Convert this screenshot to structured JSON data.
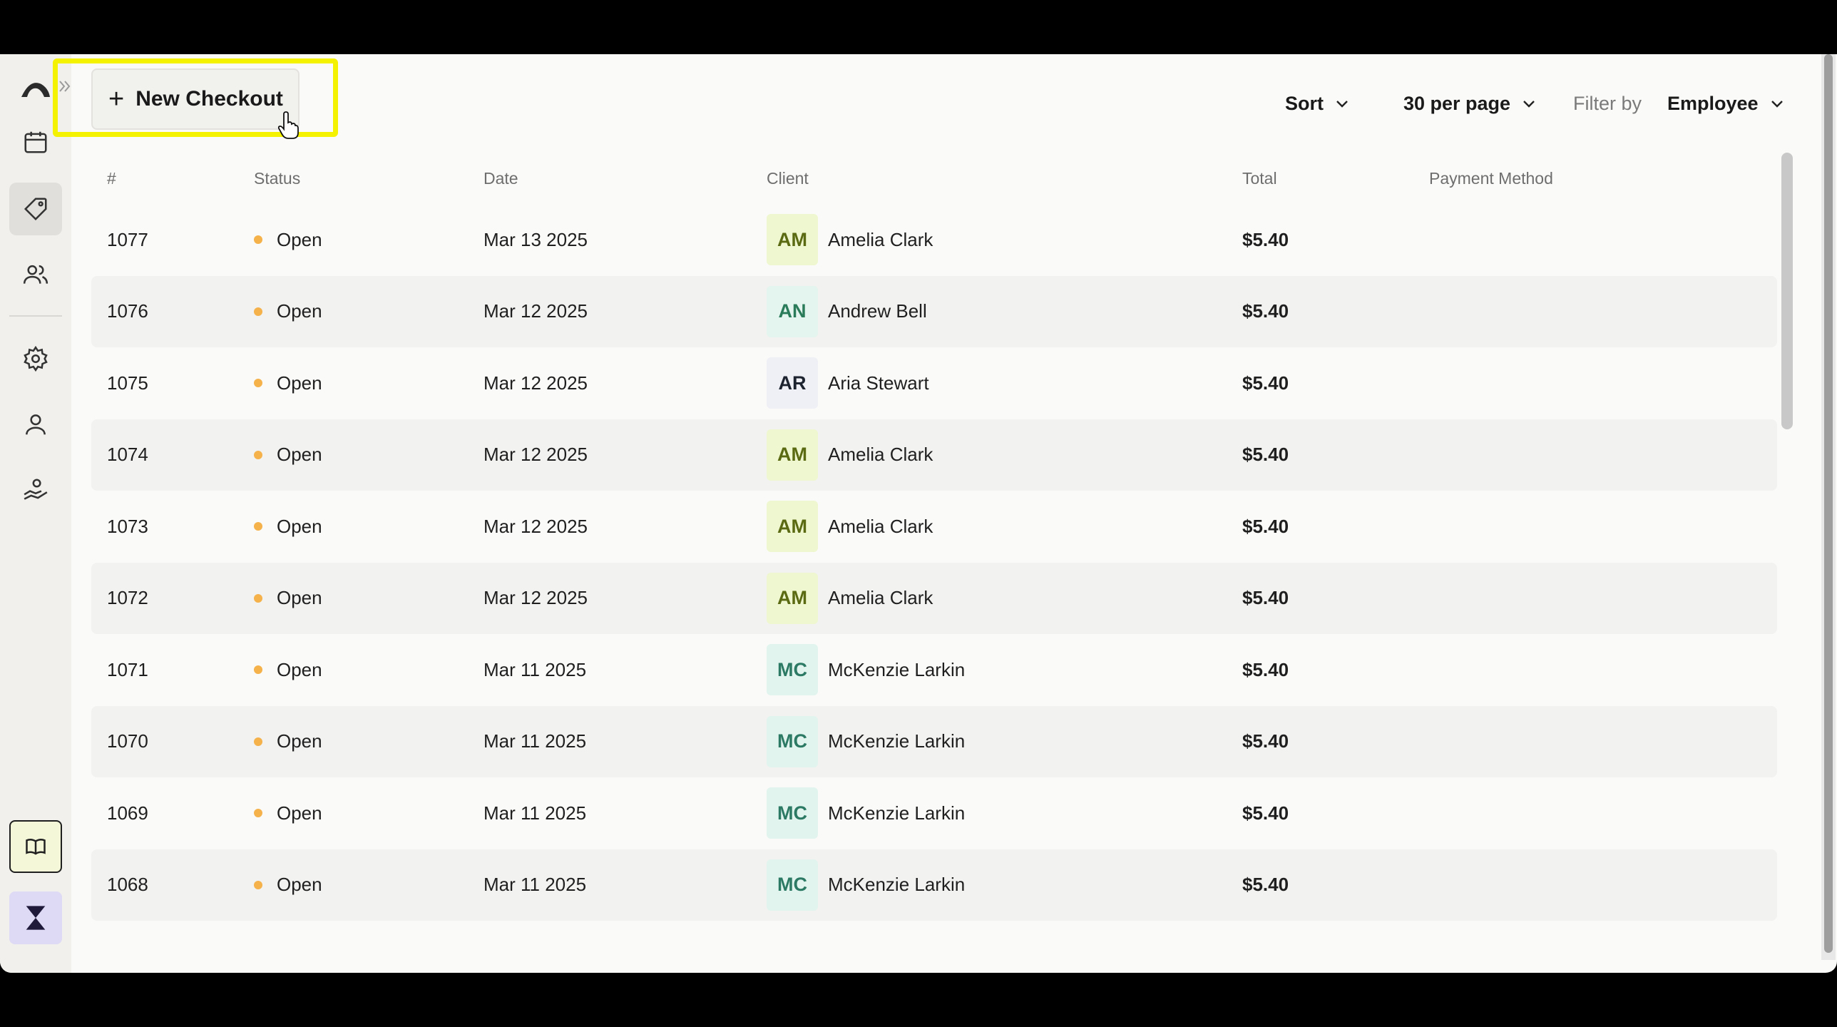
{
  "toolbar": {
    "new_checkout_label": "New Checkout",
    "sort_label": "Sort",
    "per_page_label": "30 per page",
    "filter_by_label": "Filter by",
    "filter_value": "Employee"
  },
  "sidebar": {
    "items": [
      "logo-icon",
      "calendar-icon",
      "tag-icon",
      "users-icon",
      "settings-icon",
      "user-icon",
      "hand-heart-icon",
      "book-icon",
      "hourglass-icon"
    ],
    "active": "tag-icon"
  },
  "table": {
    "headers": {
      "num": "#",
      "status": "Status",
      "date": "Date",
      "client": "Client",
      "total": "Total",
      "payment": "Payment Method"
    },
    "rows": [
      {
        "num": "1077",
        "status": "Open",
        "date": "Mar 13 2025",
        "initials": "AM",
        "client": "Amelia Clark",
        "total": "$5.40"
      },
      {
        "num": "1076",
        "status": "Open",
        "date": "Mar 12 2025",
        "initials": "AN",
        "client": "Andrew Bell",
        "total": "$5.40"
      },
      {
        "num": "1075",
        "status": "Open",
        "date": "Mar 12 2025",
        "initials": "AR",
        "client": "Aria Stewart",
        "total": "$5.40"
      },
      {
        "num": "1074",
        "status": "Open",
        "date": "Mar 12 2025",
        "initials": "AM",
        "client": "Amelia Clark",
        "total": "$5.40"
      },
      {
        "num": "1073",
        "status": "Open",
        "date": "Mar 12 2025",
        "initials": "AM",
        "client": "Amelia Clark",
        "total": "$5.40"
      },
      {
        "num": "1072",
        "status": "Open",
        "date": "Mar 12 2025",
        "initials": "AM",
        "client": "Amelia Clark",
        "total": "$5.40"
      },
      {
        "num": "1071",
        "status": "Open",
        "date": "Mar 11 2025",
        "initials": "MC",
        "client": "McKenzie Larkin",
        "total": "$5.40"
      },
      {
        "num": "1070",
        "status": "Open",
        "date": "Mar 11 2025",
        "initials": "MC",
        "client": "McKenzie Larkin",
        "total": "$5.40"
      },
      {
        "num": "1069",
        "status": "Open",
        "date": "Mar 11 2025",
        "initials": "MC",
        "client": "McKenzie Larkin",
        "total": "$5.40"
      },
      {
        "num": "1068",
        "status": "Open",
        "date": "Mar 11 2025",
        "initials": "MC",
        "client": "McKenzie Larkin",
        "total": "$5.40"
      }
    ]
  },
  "colors": {
    "status_open": "#f5b14a",
    "highlight": "#f4f200",
    "brand": "#1f1a3a"
  }
}
